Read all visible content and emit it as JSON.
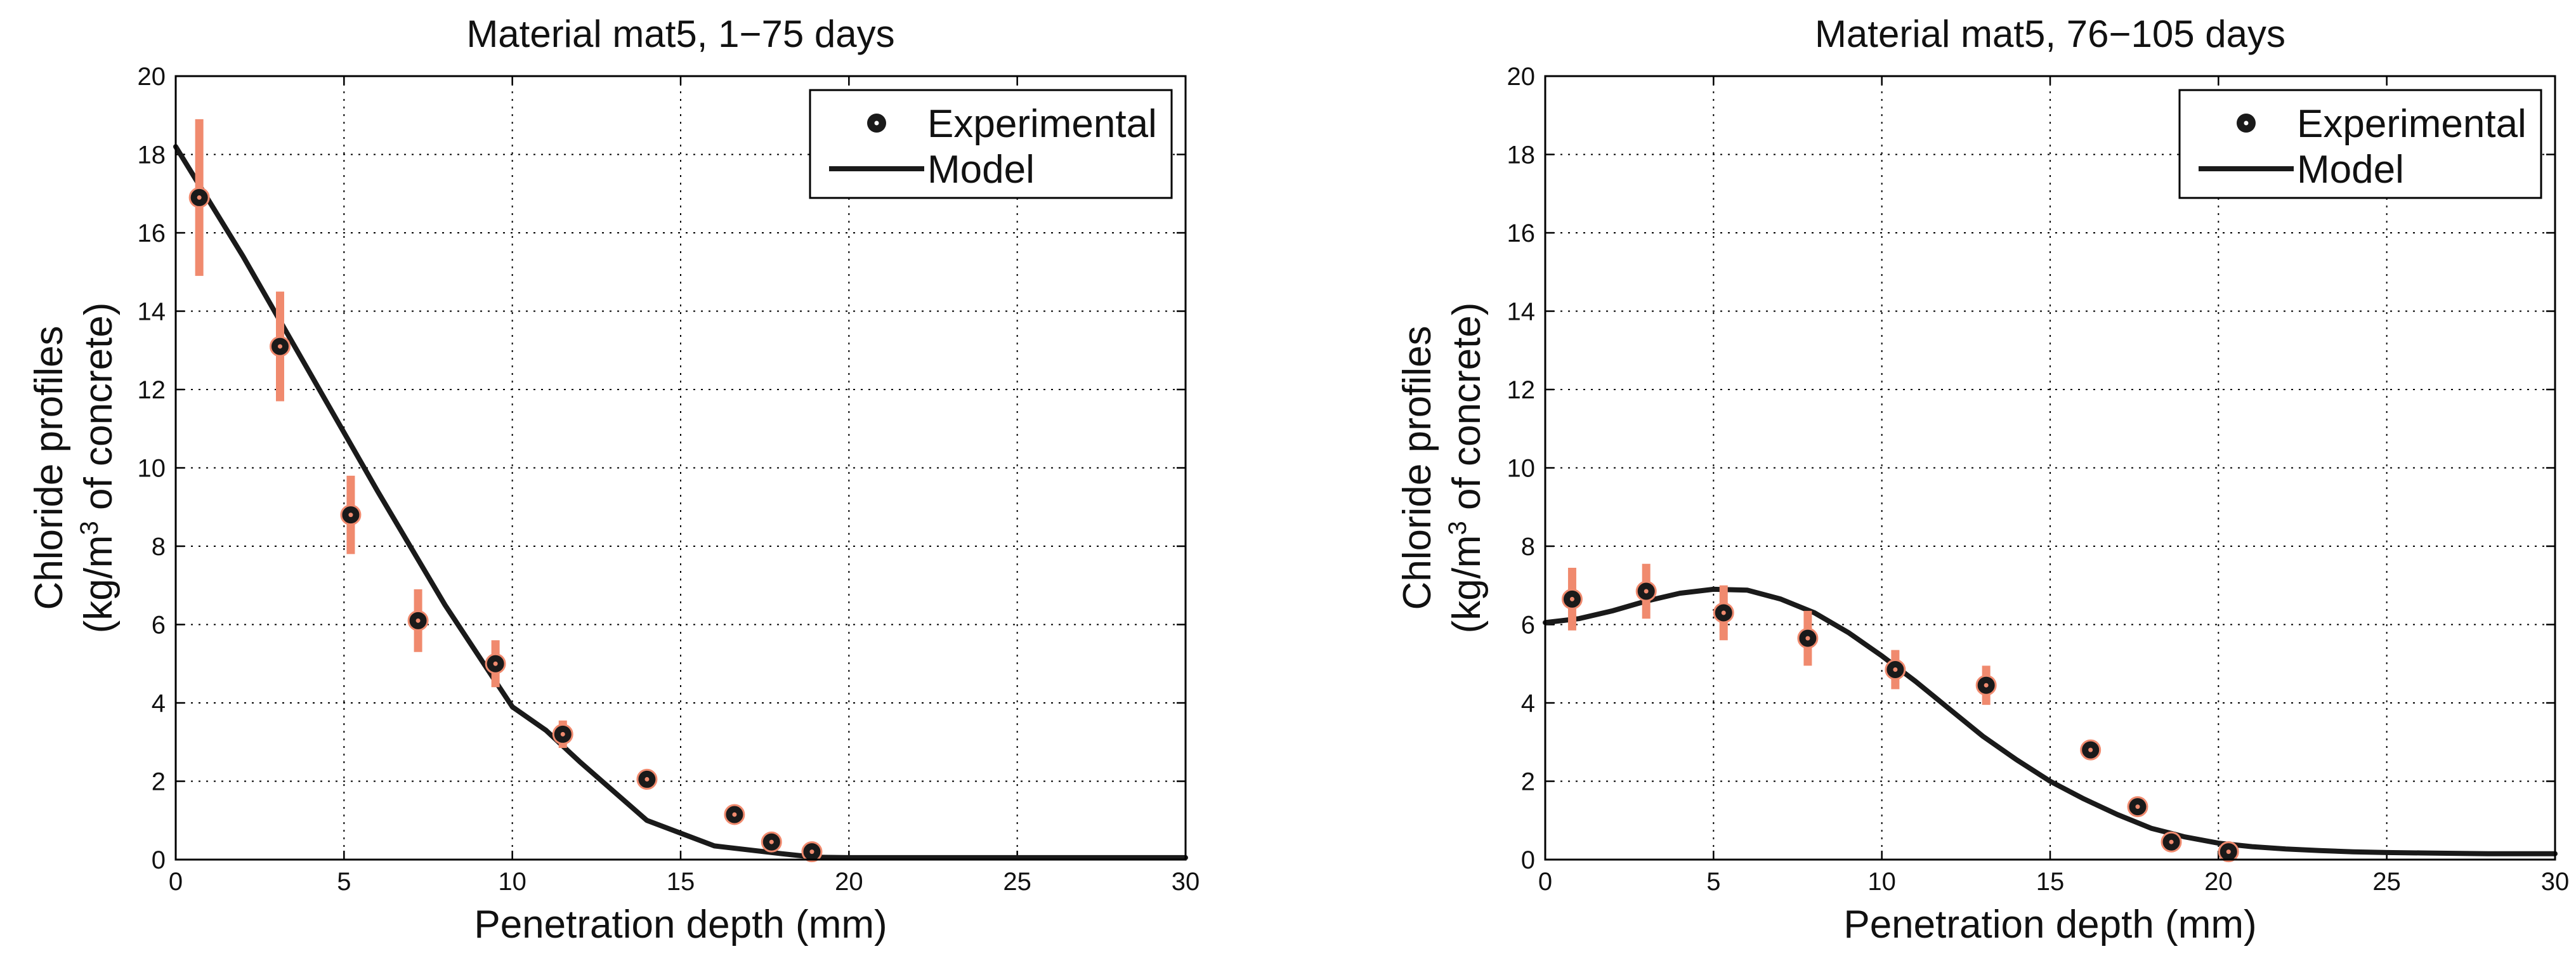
{
  "figure": {
    "background": "#ffffff"
  },
  "colors": {
    "marker": "#1a1a1a",
    "model_line": "#1a1a1a",
    "errorbar": "#f08a6e",
    "grid": "#000000"
  },
  "chart_data": [
    {
      "type": "line",
      "title": "Material mat5, 1−75 days",
      "xlabel": "Penetration depth (mm)",
      "ylabel_line1": "Chloride profiles",
      "ylabel_line2_prefix": "(kg/m",
      "ylabel_superscript": "3",
      "ylabel_line2_suffix": " of concrete)",
      "xlim": [
        0,
        30
      ],
      "ylim": [
        0,
        20
      ],
      "xticks": [
        0,
        5,
        10,
        15,
        20,
        25,
        30
      ],
      "yticks": [
        0,
        2,
        4,
        6,
        8,
        10,
        12,
        14,
        16,
        18,
        20
      ],
      "grid": true,
      "legend_position": "top-right",
      "legend": [
        "Experimental",
        "Model"
      ],
      "series": [
        {
          "name": "Experimental",
          "kind": "scatter-errorbar",
          "points": [
            {
              "x": 0.7,
              "y": 16.9,
              "err": 2.0
            },
            {
              "x": 3.1,
              "y": 13.1,
              "err": 1.4
            },
            {
              "x": 5.2,
              "y": 8.8,
              "err": 1.0
            },
            {
              "x": 7.2,
              "y": 6.1,
              "err": 0.8
            },
            {
              "x": 9.5,
              "y": 5.0,
              "err": 0.6
            },
            {
              "x": 11.5,
              "y": 3.2,
              "err": 0.35
            },
            {
              "x": 14.0,
              "y": 2.05,
              "err": 0.15
            },
            {
              "x": 16.6,
              "y": 1.15,
              "err": 0.15
            },
            {
              "x": 17.7,
              "y": 0.45,
              "err": 0.1
            },
            {
              "x": 18.9,
              "y": 0.2,
              "err": 0.05
            }
          ]
        },
        {
          "name": "Model",
          "kind": "line",
          "x": [
            0,
            2,
            4,
            6,
            8,
            10,
            11,
            12,
            14,
            16,
            18,
            19,
            20,
            25,
            30
          ],
          "y": [
            18.2,
            15.4,
            12.4,
            9.4,
            6.5,
            3.9,
            3.3,
            2.5,
            1.0,
            0.35,
            0.15,
            0.06,
            0.05,
            0.05,
            0.05
          ]
        }
      ]
    },
    {
      "type": "line",
      "title": "Material mat5, 76−105 days",
      "xlabel": "Penetration depth (mm)",
      "ylabel_line1": "Chloride profiles",
      "ylabel_line2_prefix": "(kg/m",
      "ylabel_superscript": "3",
      "ylabel_line2_suffix": " of concrete)",
      "xlim": [
        0,
        30
      ],
      "ylim": [
        0,
        20
      ],
      "xticks": [
        0,
        5,
        10,
        15,
        20,
        25,
        30
      ],
      "yticks": [
        0,
        2,
        4,
        6,
        8,
        10,
        12,
        14,
        16,
        18,
        20
      ],
      "grid": true,
      "legend_position": "top-right",
      "legend": [
        "Experimental",
        "Model"
      ],
      "series": [
        {
          "name": "Experimental",
          "kind": "scatter-errorbar",
          "points": [
            {
              "x": 0.8,
              "y": 6.65,
              "err": 0.8
            },
            {
              "x": 3.0,
              "y": 6.85,
              "err": 0.7
            },
            {
              "x": 5.3,
              "y": 6.3,
              "err": 0.7
            },
            {
              "x": 7.8,
              "y": 5.65,
              "err": 0.7
            },
            {
              "x": 10.4,
              "y": 4.85,
              "err": 0.5
            },
            {
              "x": 13.1,
              "y": 4.45,
              "err": 0.5
            },
            {
              "x": 16.2,
              "y": 2.8,
              "err": 0.15
            },
            {
              "x": 17.6,
              "y": 1.35,
              "err": 0.15
            },
            {
              "x": 18.6,
              "y": 0.45,
              "err": 0.1
            },
            {
              "x": 20.3,
              "y": 0.2,
              "err": 0.05
            }
          ]
        },
        {
          "name": "Model",
          "kind": "line",
          "x": [
            0,
            1,
            2,
            3,
            4,
            5,
            6,
            7,
            8,
            9,
            10,
            11,
            12,
            13,
            14,
            15,
            16,
            17,
            18,
            19,
            20,
            21,
            22,
            23,
            24,
            25,
            26,
            27,
            28,
            29,
            30
          ],
          "y": [
            6.05,
            6.15,
            6.35,
            6.6,
            6.8,
            6.9,
            6.88,
            6.65,
            6.3,
            5.8,
            5.2,
            4.55,
            3.85,
            3.15,
            2.55,
            2.0,
            1.55,
            1.15,
            0.8,
            0.58,
            0.42,
            0.33,
            0.27,
            0.23,
            0.2,
            0.18,
            0.17,
            0.16,
            0.15,
            0.15,
            0.15
          ]
        }
      ]
    }
  ]
}
